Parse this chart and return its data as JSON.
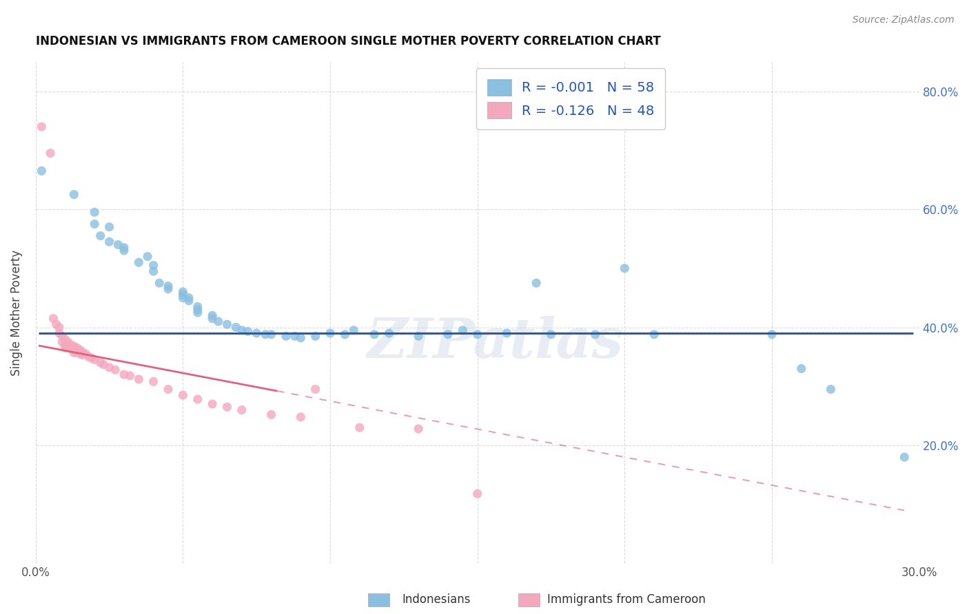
{
  "title": "INDONESIAN VS IMMIGRANTS FROM CAMEROON SINGLE MOTHER POVERTY CORRELATION CHART",
  "source": "Source: ZipAtlas.com",
  "xlabel_label": "Indonesians",
  "xlabel_label2": "Immigrants from Cameroon",
  "ylabel_label": "Single Mother Poverty",
  "xlim": [
    0.0,
    0.3
  ],
  "ylim": [
    0.0,
    0.85
  ],
  "x_tick_positions": [
    0.0,
    0.05,
    0.1,
    0.15,
    0.2,
    0.25,
    0.3
  ],
  "x_tick_labels": [
    "0.0%",
    "",
    "",
    "",
    "",
    "",
    "30.0%"
  ],
  "y_tick_positions": [
    0.0,
    0.2,
    0.4,
    0.6,
    0.8
  ],
  "y_tick_labels_right": [
    "",
    "20.0%",
    "40.0%",
    "60.0%",
    "80.0%"
  ],
  "r_blue": -0.001,
  "n_blue": 58,
  "r_pink": -0.126,
  "n_pink": 48,
  "blue_color": "#8bbfe0",
  "pink_color": "#f4a8be",
  "blue_line_color": "#2a5baa",
  "pink_line_color": "#e06080",
  "watermark_text": "ZIPatlas",
  "grid_color": "#cccccc",
  "blue_line_y": 0.39,
  "blue_line_x_start": 0.001,
  "blue_line_x_end": 0.298,
  "pink_line_x_solid_start": 0.001,
  "pink_line_x_solid_end": 0.082,
  "pink_line_y_at_0": 0.37,
  "pink_line_slope": -0.95,
  "blue_scatter": [
    [
      0.002,
      0.665
    ],
    [
      0.013,
      0.625
    ],
    [
      0.02,
      0.595
    ],
    [
      0.02,
      0.575
    ],
    [
      0.022,
      0.555
    ],
    [
      0.025,
      0.545
    ],
    [
      0.025,
      0.57
    ],
    [
      0.028,
      0.54
    ],
    [
      0.03,
      0.535
    ],
    [
      0.03,
      0.53
    ],
    [
      0.035,
      0.51
    ],
    [
      0.038,
      0.52
    ],
    [
      0.04,
      0.505
    ],
    [
      0.04,
      0.495
    ],
    [
      0.042,
      0.475
    ],
    [
      0.045,
      0.47
    ],
    [
      0.045,
      0.465
    ],
    [
      0.05,
      0.46
    ],
    [
      0.05,
      0.45
    ],
    [
      0.05,
      0.455
    ],
    [
      0.052,
      0.45
    ],
    [
      0.052,
      0.445
    ],
    [
      0.055,
      0.435
    ],
    [
      0.055,
      0.43
    ],
    [
      0.055,
      0.425
    ],
    [
      0.06,
      0.42
    ],
    [
      0.06,
      0.415
    ],
    [
      0.062,
      0.41
    ],
    [
      0.065,
      0.405
    ],
    [
      0.068,
      0.4
    ],
    [
      0.07,
      0.395
    ],
    [
      0.072,
      0.393
    ],
    [
      0.075,
      0.39
    ],
    [
      0.078,
      0.388
    ],
    [
      0.08,
      0.388
    ],
    [
      0.085,
      0.385
    ],
    [
      0.088,
      0.385
    ],
    [
      0.09,
      0.382
    ],
    [
      0.095,
      0.385
    ],
    [
      0.1,
      0.39
    ],
    [
      0.105,
      0.388
    ],
    [
      0.108,
      0.395
    ],
    [
      0.115,
      0.388
    ],
    [
      0.12,
      0.39
    ],
    [
      0.13,
      0.385
    ],
    [
      0.14,
      0.388
    ],
    [
      0.145,
      0.395
    ],
    [
      0.15,
      0.388
    ],
    [
      0.16,
      0.39
    ],
    [
      0.17,
      0.475
    ],
    [
      0.175,
      0.388
    ],
    [
      0.19,
      0.388
    ],
    [
      0.2,
      0.5
    ],
    [
      0.21,
      0.388
    ],
    [
      0.25,
      0.388
    ],
    [
      0.26,
      0.33
    ],
    [
      0.27,
      0.295
    ],
    [
      0.295,
      0.18
    ]
  ],
  "pink_scatter": [
    [
      0.002,
      0.74
    ],
    [
      0.005,
      0.695
    ],
    [
      0.006,
      0.415
    ],
    [
      0.007,
      0.405
    ],
    [
      0.008,
      0.4
    ],
    [
      0.008,
      0.39
    ],
    [
      0.009,
      0.385
    ],
    [
      0.009,
      0.375
    ],
    [
      0.01,
      0.38
    ],
    [
      0.01,
      0.37
    ],
    [
      0.01,
      0.365
    ],
    [
      0.011,
      0.375
    ],
    [
      0.011,
      0.368
    ],
    [
      0.012,
      0.37
    ],
    [
      0.012,
      0.363
    ],
    [
      0.013,
      0.368
    ],
    [
      0.013,
      0.361
    ],
    [
      0.013,
      0.357
    ],
    [
      0.014,
      0.365
    ],
    [
      0.014,
      0.358
    ],
    [
      0.015,
      0.362
    ],
    [
      0.015,
      0.355
    ],
    [
      0.016,
      0.358
    ],
    [
      0.016,
      0.353
    ],
    [
      0.017,
      0.355
    ],
    [
      0.018,
      0.35
    ],
    [
      0.019,
      0.348
    ],
    [
      0.02,
      0.345
    ],
    [
      0.022,
      0.34
    ],
    [
      0.023,
      0.337
    ],
    [
      0.025,
      0.332
    ],
    [
      0.027,
      0.328
    ],
    [
      0.03,
      0.32
    ],
    [
      0.032,
      0.318
    ],
    [
      0.035,
      0.312
    ],
    [
      0.04,
      0.308
    ],
    [
      0.045,
      0.295
    ],
    [
      0.05,
      0.285
    ],
    [
      0.055,
      0.278
    ],
    [
      0.06,
      0.27
    ],
    [
      0.065,
      0.265
    ],
    [
      0.07,
      0.26
    ],
    [
      0.08,
      0.252
    ],
    [
      0.09,
      0.248
    ],
    [
      0.095,
      0.295
    ],
    [
      0.11,
      0.23
    ],
    [
      0.13,
      0.228
    ],
    [
      0.15,
      0.118
    ]
  ]
}
